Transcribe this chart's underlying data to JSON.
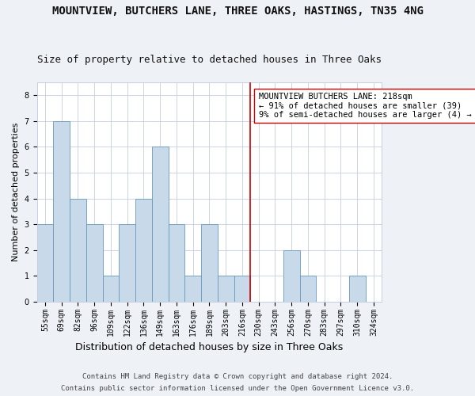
{
  "title": "MOUNTVIEW, BUTCHERS LANE, THREE OAKS, HASTINGS, TN35 4NG",
  "subtitle": "Size of property relative to detached houses in Three Oaks",
  "xlabel": "Distribution of detached houses by size in Three Oaks",
  "ylabel": "Number of detached properties",
  "bar_color": "#c8daea",
  "bar_edge_color": "#6699bb",
  "categories": [
    "55sqm",
    "69sqm",
    "82sqm",
    "96sqm",
    "109sqm",
    "122sqm",
    "136sqm",
    "149sqm",
    "163sqm",
    "176sqm",
    "189sqm",
    "203sqm",
    "216sqm",
    "230sqm",
    "243sqm",
    "256sqm",
    "270sqm",
    "283sqm",
    "297sqm",
    "310sqm",
    "324sqm"
  ],
  "values": [
    3,
    7,
    4,
    3,
    1,
    3,
    4,
    6,
    3,
    1,
    3,
    1,
    1,
    0,
    0,
    2,
    1,
    0,
    0,
    1,
    0
  ],
  "vline_index": 12.5,
  "vline_color": "#cc0000",
  "annotation_text": "MOUNTVIEW BUTCHERS LANE: 218sqm\n← 91% of detached houses are smaller (39)\n9% of semi-detached houses are larger (4) →",
  "ylim": [
    0,
    8.5
  ],
  "yticks": [
    0,
    1,
    2,
    3,
    4,
    5,
    6,
    7,
    8
  ],
  "footer1": "Contains HM Land Registry data © Crown copyright and database right 2024.",
  "footer2": "Contains public sector information licensed under the Open Government Licence v3.0.",
  "background_color": "#eef2f7",
  "plot_background_color": "#ffffff",
  "grid_color": "#c5cfe0",
  "title_fontsize": 10,
  "subtitle_fontsize": 9,
  "xlabel_fontsize": 9,
  "ylabel_fontsize": 8,
  "tick_fontsize": 7,
  "annotation_fontsize": 7.5,
  "footer_fontsize": 6.5
}
